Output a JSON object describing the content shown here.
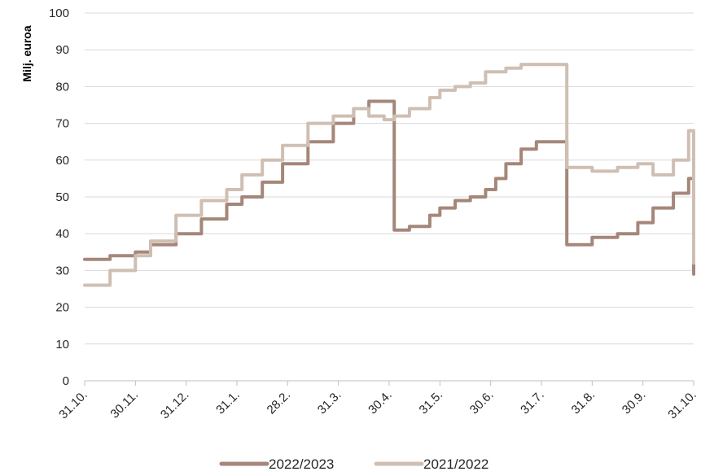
{
  "chart_data": {
    "type": "line",
    "title": "",
    "ylabel": "Milj. euroa",
    "xlabel": "",
    "ylim": [
      0,
      100
    ],
    "yticks": [
      0,
      10,
      20,
      30,
      40,
      50,
      60,
      70,
      80,
      90,
      100
    ],
    "grid": true,
    "legend_position": "bottom",
    "categories": [
      "31.10.",
      "30.11.",
      "31.12.",
      "31.1.",
      "28.2.",
      "31.3.",
      "30.4.",
      "31.5.",
      "30.6.",
      "31.7.",
      "31.8.",
      "30.9.",
      "31.10."
    ],
    "series": [
      {
        "name": "2022/2023",
        "color": "#a5877a",
        "x": [
          0,
          0.5,
          1.0,
          1.3,
          1.8,
          2.3,
          2.8,
          3.1,
          3.5,
          3.9,
          4.4,
          4.9,
          5.3,
          5.6,
          5.9,
          6.1,
          6.4,
          6.8,
          7.0,
          7.3,
          7.6,
          7.9,
          8.1,
          8.3,
          8.6,
          8.9,
          9.5,
          10.0,
          10.5,
          10.9,
          11.2,
          11.6,
          11.9,
          12.0
        ],
        "values": [
          33,
          34,
          35,
          37,
          40,
          44,
          48,
          50,
          54,
          59,
          65,
          70,
          74,
          76,
          76,
          41,
          42,
          45,
          47,
          49,
          50,
          52,
          55,
          59,
          63,
          65,
          37,
          39,
          40,
          43,
          47,
          51,
          55,
          29
        ]
      },
      {
        "name": "2021/2022",
        "color": "#cfbfb3",
        "x": [
          0,
          0.5,
          1.0,
          1.3,
          1.8,
          2.3,
          2.8,
          3.1,
          3.5,
          3.9,
          4.4,
          4.9,
          5.3,
          5.6,
          5.9,
          6.1,
          6.4,
          6.8,
          7.0,
          7.3,
          7.6,
          7.9,
          8.1,
          8.3,
          8.6,
          8.9,
          9.5,
          10.0,
          10.5,
          10.9,
          11.2,
          11.6,
          11.9,
          12.0
        ],
        "values": [
          26,
          30,
          34,
          38,
          45,
          49,
          52,
          56,
          60,
          64,
          70,
          72,
          74,
          72,
          71,
          72,
          74,
          77,
          79,
          80,
          81,
          84,
          84,
          85,
          86,
          86,
          58,
          57,
          58,
          59,
          56,
          60,
          68,
          32
        ]
      }
    ]
  }
}
